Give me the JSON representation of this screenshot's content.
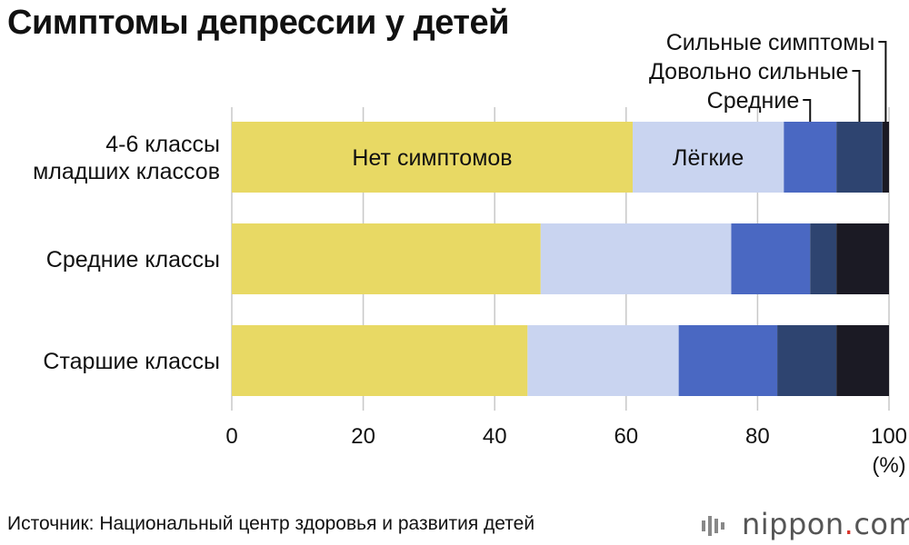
{
  "title": "Симптомы депрессии у детей",
  "source": "Источник: Национальный центр здоровья и развития детей",
  "brand": {
    "name": "nippon",
    "dot": ".",
    "domain": "com"
  },
  "colors": {
    "Нет симптомов": "#e8d964",
    "Лёгкие": "#c9d4f0",
    "Средние": "#4a68c2",
    "Довольно сильные": "#2e4470",
    "Сильные симптомы": "#1b1a24"
  },
  "chart_data": {
    "type": "bar",
    "orientation": "horizontal",
    "stacked": true,
    "unit_label": "(%)",
    "xlim": [
      0,
      100
    ],
    "x_ticks": [
      0,
      20,
      40,
      60,
      80,
      100
    ],
    "grid": true,
    "categories": [
      [
        "4-6 классы",
        "младших классов"
      ],
      [
        "Средние классы"
      ],
      [
        "Старшие классы"
      ]
    ],
    "series": [
      {
        "name": "Нет симптомов",
        "values": [
          61,
          47,
          45
        ]
      },
      {
        "name": "Лёгкие",
        "values": [
          23,
          29,
          23
        ]
      },
      {
        "name": "Средние",
        "values": [
          8,
          12,
          15
        ]
      },
      {
        "name": "Довольно сильные",
        "values": [
          7,
          4,
          9
        ]
      },
      {
        "name": "Сильные симптомы",
        "values": [
          1,
          8,
          8
        ]
      }
    ],
    "inline_labels": [
      "Нет симптомов",
      "Лёгкие"
    ],
    "callout_labels": [
      "Сильные симптомы",
      "Довольно сильные",
      "Средние"
    ]
  }
}
